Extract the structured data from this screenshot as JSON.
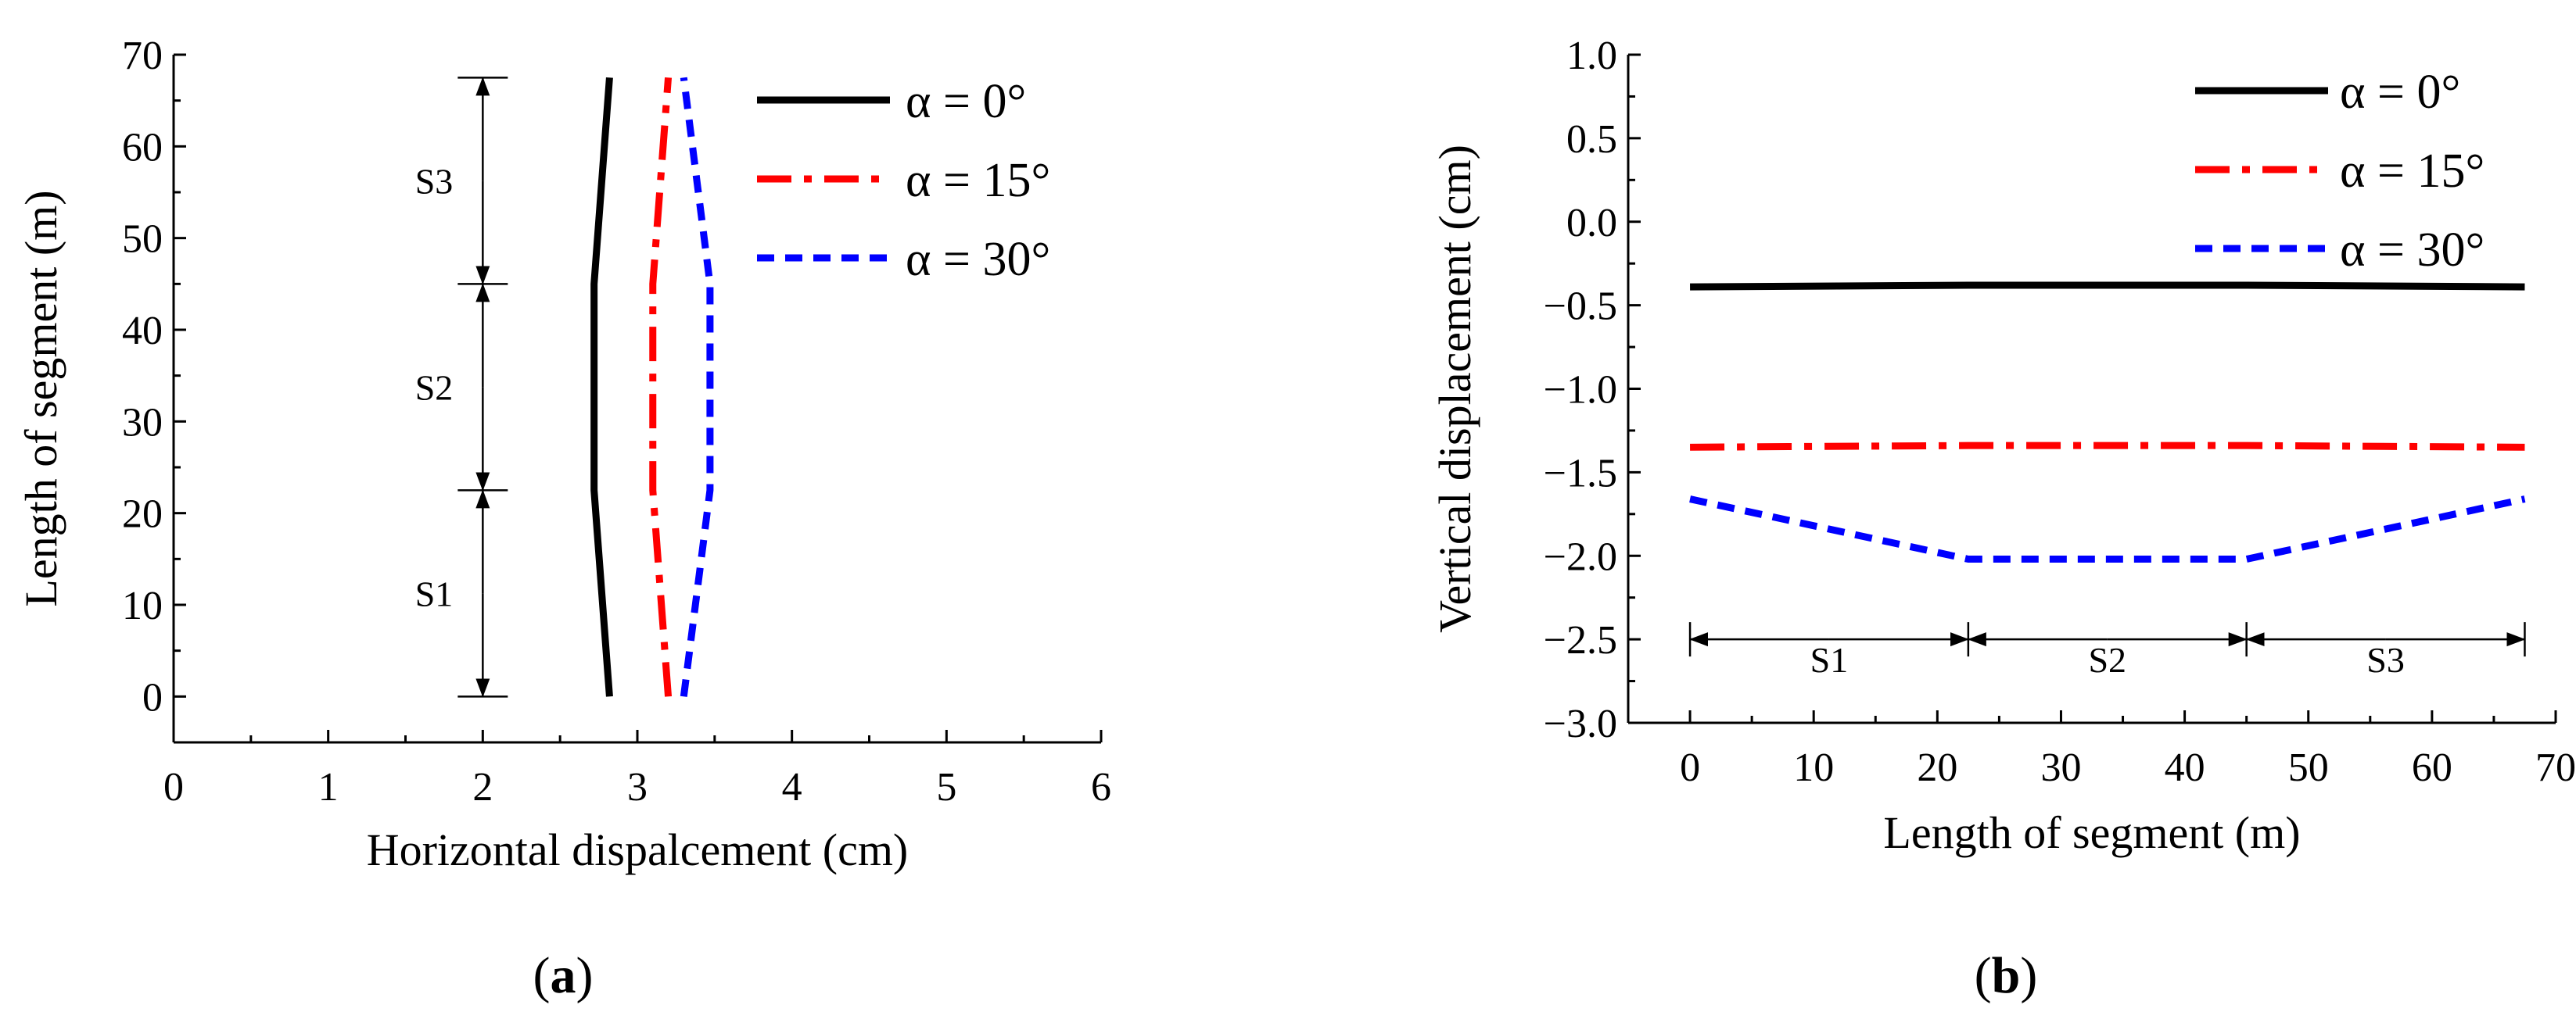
{
  "chart_data": [
    {
      "id": "a",
      "type": "line",
      "panel_label": "a",
      "xlabel": "Horizontal dispalcement (cm)",
      "ylabel": "Length of segment (m)",
      "xlim": [
        0,
        6
      ],
      "ylim": [
        -5,
        70
      ],
      "xticks": [
        0,
        1,
        2,
        3,
        4,
        5,
        6
      ],
      "yticks": [
        0,
        10,
        20,
        30,
        40,
        50,
        60,
        70
      ],
      "series": [
        {
          "name": "α = 0°",
          "color": "#000000",
          "dash": "solid",
          "x": [
            2.82,
            2.72,
            2.72,
            2.72,
            2.82
          ],
          "y": [
            0,
            22.5,
            33.75,
            45,
            67.5
          ]
        },
        {
          "name": "α = 15°",
          "color": "#ff0000",
          "dash": "dashdot",
          "x": [
            3.2,
            3.1,
            3.1,
            3.1,
            3.2
          ],
          "y": [
            0,
            22.5,
            33.75,
            45,
            67.5
          ]
        },
        {
          "name": "α = 30°",
          "color": "#0000ff",
          "dash": "dash",
          "x": [
            3.3,
            3.47,
            3.47,
            3.47,
            3.3
          ],
          "y": [
            0,
            22.5,
            33.75,
            45,
            67.5
          ]
        }
      ],
      "segments": [
        {
          "label": "S1",
          "from": 0,
          "to": 22.5
        },
        {
          "label": "S2",
          "from": 22.5,
          "to": 45
        },
        {
          "label": "S3",
          "from": 45,
          "to": 67.5
        }
      ],
      "segment_axis_value": 2.0,
      "legend_position": "top-right"
    },
    {
      "id": "b",
      "type": "line",
      "panel_label": "b",
      "xlabel": "Length of segment (m)",
      "ylabel": "Vertical displacement (cm)",
      "xlim": [
        -5,
        70
      ],
      "ylim": [
        -3.0,
        1.0
      ],
      "xticks": [
        0,
        10,
        20,
        30,
        40,
        50,
        60,
        70
      ],
      "yticks": [
        1.0,
        0.5,
        0.0,
        -0.5,
        -1.0,
        -1.5,
        -2.0,
        -2.5,
        -3.0
      ],
      "ytick_labels": [
        "1.0",
        "0.5",
        "0.0",
        "−0.5",
        "−1.0",
        "−1.5",
        "−2.0",
        "−2.5",
        "−3.0"
      ],
      "series": [
        {
          "name": "α = 0°",
          "color": "#000000",
          "dash": "solid",
          "x": [
            0,
            22.5,
            45,
            67.5
          ],
          "y": [
            -0.39,
            -0.38,
            -0.38,
            -0.39
          ]
        },
        {
          "name": "α = 15°",
          "color": "#ff0000",
          "dash": "dashdot",
          "x": [
            0,
            22.5,
            45,
            67.5
          ],
          "y": [
            -1.35,
            -1.34,
            -1.34,
            -1.35
          ]
        },
        {
          "name": "α = 30°",
          "color": "#0000ff",
          "dash": "dash",
          "x": [
            0,
            22.5,
            45,
            67.5
          ],
          "y": [
            -1.66,
            -2.02,
            -2.02,
            -1.66
          ]
        }
      ],
      "segments": [
        {
          "label": "S1",
          "from": 0,
          "to": 22.5
        },
        {
          "label": "S2",
          "from": 22.5,
          "to": 45
        },
        {
          "label": "S3",
          "from": 45,
          "to": 67.5
        }
      ],
      "segment_axis_value": -2.5,
      "legend_position": "top-right"
    }
  ]
}
